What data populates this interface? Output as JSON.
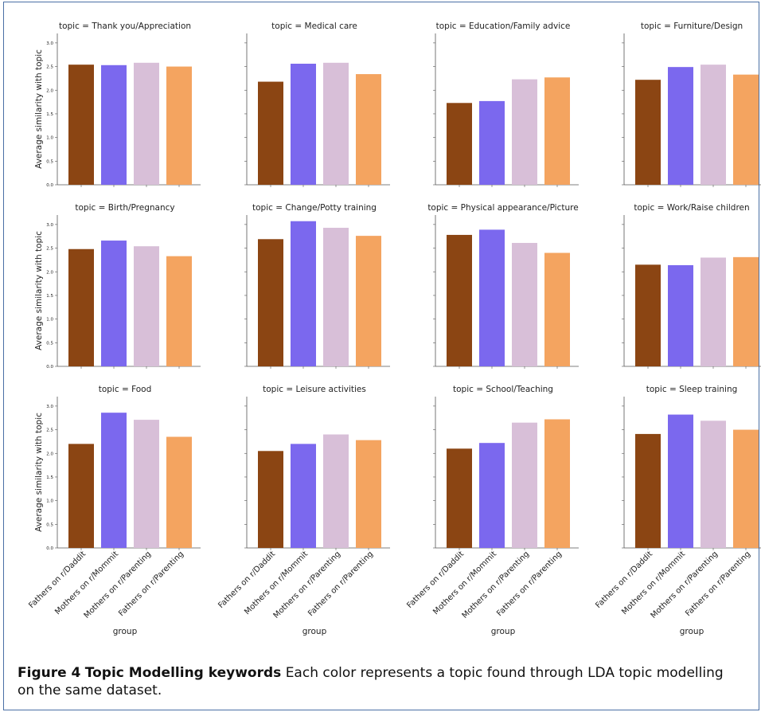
{
  "caption": {
    "label": "Figure 4",
    "title": "Topic Modelling keywords",
    "text": "Each color represents a topic found through LDA topic modelling on the same dataset."
  },
  "chart_data": {
    "type": "bar",
    "ylabel": "Average similarity with topic",
    "xlabel": "group",
    "ylim": [
      0,
      3.2
    ],
    "yticks": [
      "0.0",
      "0.5",
      "1.0",
      "1.5",
      "2.0",
      "2.5",
      "3.0"
    ],
    "categories": [
      "Fathers on r/Daddit",
      "Mothers on r/Mommit",
      "Mothers on r/Parenting",
      "Fathers on r/Parenting"
    ],
    "colors": [
      "#8b4513",
      "#7b68ee",
      "#d8bfd8",
      "#f4a460"
    ],
    "panels": [
      {
        "title": "topic = Thank you/Appreciation",
        "values": [
          2.54,
          2.53,
          2.58,
          2.5
        ]
      },
      {
        "title": "topic = Medical care",
        "values": [
          2.18,
          2.56,
          2.58,
          2.34
        ]
      },
      {
        "title": "topic = Education/Family advice",
        "values": [
          1.73,
          1.77,
          2.23,
          2.27
        ]
      },
      {
        "title": "topic = Furniture/Design",
        "values": [
          2.22,
          2.49,
          2.54,
          2.33
        ]
      },
      {
        "title": "topic = Birth/Pregnancy",
        "values": [
          2.48,
          2.66,
          2.54,
          2.33
        ]
      },
      {
        "title": "topic = Change/Potty training",
        "values": [
          2.69,
          3.07,
          2.93,
          2.76
        ]
      },
      {
        "title": "topic = Physical appearance/Picture",
        "values": [
          2.78,
          2.89,
          2.61,
          2.4
        ]
      },
      {
        "title": "topic = Work/Raise children",
        "values": [
          2.15,
          2.14,
          2.3,
          2.31
        ]
      },
      {
        "title": "topic = Food",
        "values": [
          2.2,
          2.86,
          2.71,
          2.35
        ]
      },
      {
        "title": "topic = Leisure activities",
        "values": [
          2.05,
          2.2,
          2.4,
          2.28
        ]
      },
      {
        "title": "topic = School/Teaching",
        "values": [
          2.1,
          2.22,
          2.65,
          2.72
        ]
      },
      {
        "title": "topic = Sleep training",
        "values": [
          2.41,
          2.82,
          2.69,
          2.5
        ]
      }
    ]
  }
}
